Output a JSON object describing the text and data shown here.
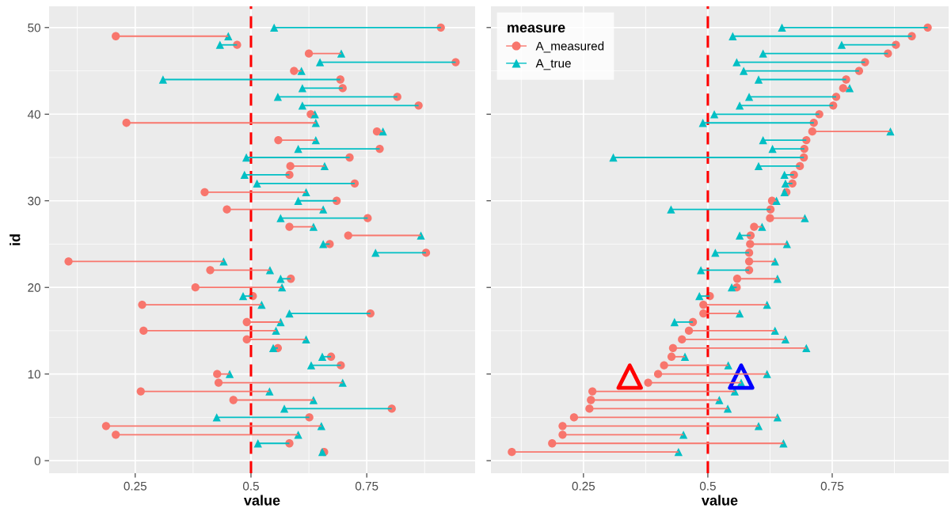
{
  "chart_data": [
    {
      "type": "scatter",
      "xlabel": "value",
      "ylabel": "id",
      "xlim": [
        0.064,
        0.984
      ],
      "xticks": [
        0.25,
        0.5,
        0.75
      ],
      "ylim": [
        -1.45,
        52.45
      ],
      "yticks": [
        0,
        10,
        20,
        30,
        40,
        50
      ],
      "grid": true,
      "legend": false,
      "ref_lines": [
        {
          "axis": "x",
          "value": 0.5,
          "color": "#ff0000",
          "line_style": "dashed"
        }
      ],
      "series": [
        {
          "color": "#f8766d",
          "marker": "circle",
          "x": [
            0.658,
            0.583,
            0.208,
            0.187,
            0.626,
            0.804,
            0.462,
            0.262,
            0.43,
            0.427,
            0.694,
            0.673,
            0.558,
            0.491,
            0.268,
            0.491,
            0.758,
            0.265,
            0.504,
            0.38,
            0.586,
            0.412,
            0.106,
            0.878,
            0.67,
            0.71,
            0.583,
            0.752,
            0.448,
            0.685,
            0.4,
            0.724,
            0.583,
            0.585,
            0.713,
            0.778,
            0.559,
            0.772,
            0.231,
            0.629,
            0.862,
            0.816,
            0.698,
            0.693,
            0.593,
            0.942,
            0.625,
            0.47,
            0.208,
            0.91
          ],
          "values": [
            1,
            2,
            3,
            4,
            5,
            6,
            7,
            8,
            9,
            10,
            11,
            12,
            13,
            14,
            15,
            16,
            17,
            18,
            19,
            20,
            21,
            22,
            23,
            24,
            25,
            26,
            27,
            28,
            29,
            30,
            31,
            32,
            33,
            34,
            35,
            36,
            37,
            38,
            39,
            40,
            41,
            42,
            43,
            44,
            45,
            46,
            47,
            48,
            49,
            50
          ],
          "xerrors": [
            null,
            null,
            [
              0.208,
              0.602
            ],
            [
              0.187,
              0.652
            ],
            null,
            null,
            [
              0.462,
              0.635
            ],
            [
              0.262,
              0.54
            ],
            [
              0.43,
              0.698
            ],
            [
              0.427,
              0.454
            ],
            null,
            null,
            null,
            [
              0.491,
              0.619
            ],
            [
              0.268,
              0.554
            ],
            [
              0.491,
              0.564
            ],
            null,
            [
              0.265,
              0.523
            ],
            null,
            [
              0.38,
              0.567
            ],
            null,
            [
              0.412,
              0.541
            ],
            [
              0.106,
              0.441
            ],
            null,
            null,
            [
              0.71,
              0.867
            ],
            [
              0.583,
              0.635
            ],
            null,
            [
              0.448,
              0.656
            ],
            null,
            [
              0.4,
              0.619
            ],
            null,
            null,
            [
              0.585,
              0.659
            ],
            null,
            null,
            [
              0.559,
              0.64
            ],
            [
              0.772,
              0.785
            ],
            [
              0.231,
              0.64
            ],
            [
              0.629,
              0.638
            ],
            null,
            null,
            null,
            null,
            [
              0.593,
              0.609
            ],
            null,
            [
              0.625,
              0.695
            ],
            null,
            [
              0.208,
              0.451
            ],
            null
          ]
        },
        {
          "color": "#00bfc4",
          "marker": "triangle",
          "x": [
            0.654,
            0.515,
            0.602,
            0.652,
            0.426,
            0.572,
            0.635,
            0.54,
            0.698,
            0.454,
            0.63,
            0.654,
            0.548,
            0.619,
            0.554,
            0.564,
            0.583,
            0.523,
            0.483,
            0.567,
            0.564,
            0.541,
            0.441,
            0.769,
            0.656,
            0.867,
            0.635,
            0.564,
            0.656,
            0.602,
            0.619,
            0.513,
            0.486,
            0.659,
            0.49,
            0.602,
            0.64,
            0.785,
            0.64,
            0.638,
            0.611,
            0.558,
            0.611,
            0.31,
            0.609,
            0.649,
            0.695,
            0.433,
            0.451,
            0.55
          ],
          "values": [
            1,
            2,
            3,
            4,
            5,
            6,
            7,
            8,
            9,
            10,
            11,
            12,
            13,
            14,
            15,
            16,
            17,
            18,
            19,
            20,
            21,
            22,
            23,
            24,
            25,
            26,
            27,
            28,
            29,
            30,
            31,
            32,
            33,
            34,
            35,
            36,
            37,
            38,
            39,
            40,
            41,
            42,
            43,
            44,
            45,
            46,
            47,
            48,
            49,
            50
          ],
          "xerrors": [
            [
              0.654,
              0.658
            ],
            [
              0.515,
              0.583
            ],
            null,
            null,
            [
              0.426,
              0.626
            ],
            [
              0.572,
              0.804
            ],
            null,
            null,
            null,
            null,
            [
              0.63,
              0.694
            ],
            [
              0.654,
              0.673
            ],
            [
              0.548,
              0.558
            ],
            null,
            null,
            null,
            [
              0.583,
              0.758
            ],
            null,
            [
              0.483,
              0.504
            ],
            null,
            [
              0.564,
              0.586
            ],
            null,
            null,
            [
              0.769,
              0.878
            ],
            [
              0.656,
              0.67
            ],
            null,
            null,
            [
              0.564,
              0.752
            ],
            null,
            [
              0.602,
              0.685
            ],
            null,
            [
              0.513,
              0.724
            ],
            [
              0.486,
              0.583
            ],
            null,
            [
              0.49,
              0.713
            ],
            [
              0.602,
              0.778
            ],
            null,
            null,
            null,
            null,
            [
              0.611,
              0.862
            ],
            [
              0.558,
              0.816
            ],
            [
              0.611,
              0.698
            ],
            [
              0.31,
              0.693
            ],
            null,
            [
              0.649,
              0.942
            ],
            null,
            [
              0.433,
              0.47
            ],
            null,
            [
              0.55,
              0.91
            ]
          ]
        }
      ]
    },
    {
      "type": "scatter",
      "xlabel": "value",
      "xlim": [
        0.064,
        0.984
      ],
      "xticks": [
        0.25,
        0.5,
        0.75
      ],
      "ylim": [
        -1.45,
        52.45
      ],
      "yticks": [
        0,
        10,
        20,
        30,
        40,
        50
      ],
      "tick_labels": "x",
      "grid": true,
      "legend": "top left",
      "legend_title": "measure",
      "ref_lines": [
        {
          "axis": "x",
          "value": 0.5,
          "color": "#ff0000",
          "line_style": "dashed"
        }
      ],
      "series": [
        {
          "name": "A_measured",
          "color": "#f8766d",
          "marker": "circle",
          "x": [
            0.106,
            0.187,
            0.208,
            0.208,
            0.231,
            0.262,
            0.265,
            0.268,
            0.38,
            0.4,
            0.412,
            0.427,
            0.43,
            0.448,
            0.462,
            0.47,
            0.491,
            0.491,
            0.504,
            0.558,
            0.559,
            0.583,
            0.583,
            0.583,
            0.585,
            0.586,
            0.593,
            0.625,
            0.626,
            0.629,
            0.658,
            0.67,
            0.673,
            0.685,
            0.693,
            0.694,
            0.698,
            0.71,
            0.713,
            0.724,
            0.752,
            0.758,
            0.772,
            0.778,
            0.804,
            0.816,
            0.862,
            0.878,
            0.91,
            0.942
          ],
          "values": [
            1,
            2,
            3,
            4,
            5,
            6,
            7,
            8,
            9,
            10,
            11,
            12,
            13,
            14,
            15,
            16,
            17,
            18,
            19,
            20,
            21,
            22,
            23,
            24,
            25,
            26,
            27,
            28,
            29,
            30,
            31,
            32,
            33,
            34,
            35,
            36,
            37,
            38,
            39,
            40,
            41,
            42,
            43,
            44,
            45,
            46,
            47,
            48,
            49,
            50
          ],
          "xerrors": [
            [
              0.106,
              0.441
            ],
            [
              0.187,
              0.652
            ],
            [
              0.208,
              0.451
            ],
            [
              0.208,
              0.602
            ],
            [
              0.231,
              0.64
            ],
            [
              0.262,
              0.54
            ],
            [
              0.265,
              0.523
            ],
            [
              0.268,
              0.554
            ],
            [
              0.38,
              0.567
            ],
            [
              0.4,
              0.619
            ],
            [
              0.412,
              0.541
            ],
            [
              0.427,
              0.454
            ],
            [
              0.43,
              0.698
            ],
            [
              0.448,
              0.656
            ],
            [
              0.462,
              0.635
            ],
            null,
            [
              0.491,
              0.564
            ],
            [
              0.491,
              0.619
            ],
            null,
            null,
            [
              0.559,
              0.64
            ],
            null,
            [
              0.583,
              0.635
            ],
            null,
            [
              0.585,
              0.659
            ],
            null,
            [
              0.593,
              0.609
            ],
            [
              0.625,
              0.695
            ],
            null,
            [
              0.629,
              0.638
            ],
            null,
            null,
            null,
            null,
            null,
            null,
            null,
            [
              0.71,
              0.867
            ],
            null,
            null,
            null,
            null,
            [
              0.772,
              0.785
            ],
            null,
            null,
            null,
            null,
            null,
            null,
            null
          ]
        },
        {
          "name": "A_true",
          "color": "#00bfc4",
          "marker": "triangle",
          "x": [
            0.441,
            0.652,
            0.451,
            0.602,
            0.64,
            0.54,
            0.523,
            0.554,
            0.567,
            0.619,
            0.541,
            0.454,
            0.698,
            0.656,
            0.635,
            0.433,
            0.564,
            0.619,
            0.483,
            0.548,
            0.64,
            0.486,
            0.635,
            0.515,
            0.659,
            0.564,
            0.609,
            0.695,
            0.426,
            0.638,
            0.654,
            0.656,
            0.654,
            0.602,
            0.31,
            0.63,
            0.611,
            0.867,
            0.49,
            0.513,
            0.564,
            0.583,
            0.785,
            0.602,
            0.572,
            0.558,
            0.611,
            0.769,
            0.55,
            0.649
          ],
          "values": [
            1,
            2,
            3,
            4,
            5,
            6,
            7,
            8,
            9,
            10,
            11,
            12,
            13,
            14,
            15,
            16,
            17,
            18,
            19,
            20,
            21,
            22,
            23,
            24,
            25,
            26,
            27,
            28,
            29,
            30,
            31,
            32,
            33,
            34,
            35,
            36,
            37,
            38,
            39,
            40,
            41,
            42,
            43,
            44,
            45,
            46,
            47,
            48,
            49,
            50
          ],
          "xerrors": [
            null,
            null,
            null,
            null,
            null,
            null,
            null,
            null,
            null,
            null,
            null,
            null,
            null,
            null,
            null,
            [
              0.433,
              0.47
            ],
            null,
            null,
            [
              0.483,
              0.504
            ],
            [
              0.548,
              0.558
            ],
            null,
            [
              0.486,
              0.583
            ],
            null,
            [
              0.515,
              0.583
            ],
            null,
            [
              0.564,
              0.586
            ],
            null,
            null,
            [
              0.426,
              0.626
            ],
            null,
            [
              0.654,
              0.658
            ],
            [
              0.656,
              0.67
            ],
            [
              0.654,
              0.673
            ],
            [
              0.602,
              0.685
            ],
            [
              0.31,
              0.693
            ],
            [
              0.63,
              0.694
            ],
            [
              0.611,
              0.698
            ],
            null,
            [
              0.49,
              0.713
            ],
            [
              0.513,
              0.724
            ],
            [
              0.564,
              0.752
            ],
            [
              0.583,
              0.758
            ],
            null,
            [
              0.602,
              0.778
            ],
            [
              0.572,
              0.804
            ],
            [
              0.558,
              0.816
            ],
            [
              0.611,
              0.862
            ],
            [
              0.769,
              0.878
            ],
            [
              0.55,
              0.91
            ],
            [
              0.649,
              0.942
            ]
          ]
        },
        {
          "color": "#ff0000",
          "marker": "triangle",
          "x": [
            0.343
          ],
          "values": [
            9.7
          ]
        },
        {
          "color": "#0000ff",
          "marker": "triangle",
          "x": [
            0.567
          ],
          "values": [
            9.7
          ]
        }
      ]
    }
  ]
}
